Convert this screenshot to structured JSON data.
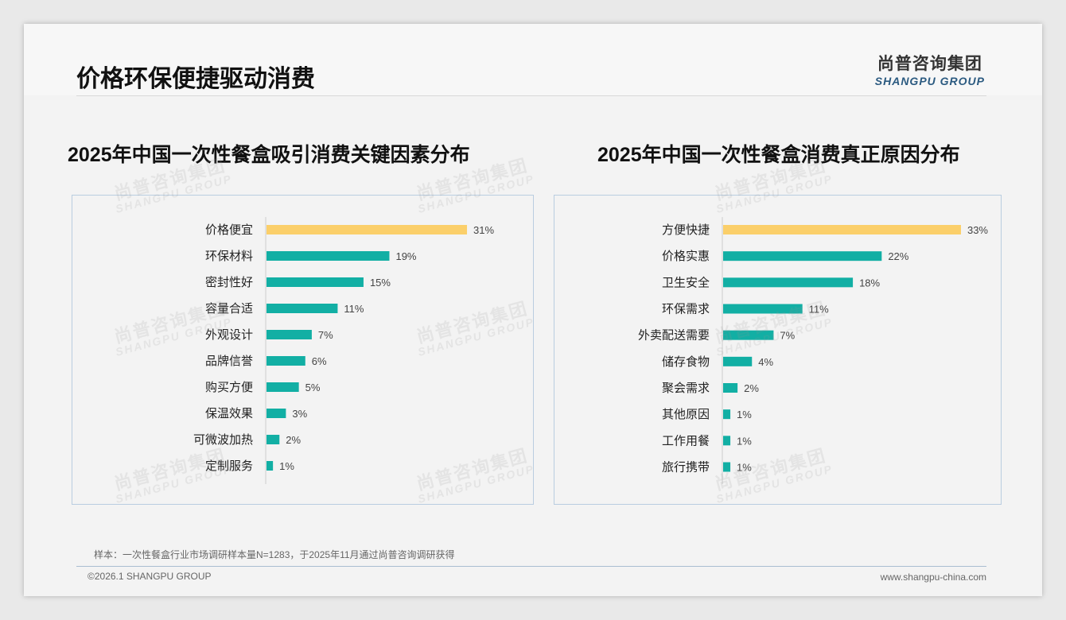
{
  "header": {
    "title": "价格环保便捷驱动消费",
    "logo_cn": "尚普咨询集团",
    "logo_en": "SHANGPU GROUP"
  },
  "colors": {
    "highlight": "#fbcf6a",
    "bar": "#12afa4",
    "axis": "#cccccc"
  },
  "chart_data": [
    {
      "type": "bar",
      "orientation": "horizontal",
      "title": "2025年中国一次性餐盒吸引消费关键因素分布",
      "categories": [
        "价格便宜",
        "环保材料",
        "密封性好",
        "容量合适",
        "外观设计",
        "品牌信誉",
        "购买方便",
        "保温效果",
        "可微波加热",
        "定制服务"
      ],
      "values": [
        31,
        19,
        15,
        11,
        7,
        6,
        5,
        3,
        2,
        1
      ],
      "unit": "%",
      "xlim": [
        0,
        35
      ]
    },
    {
      "type": "bar",
      "orientation": "horizontal",
      "title": "2025年中国一次性餐盒消费真正原因分布",
      "categories": [
        "方便快捷",
        "价格实惠",
        "卫生安全",
        "环保需求",
        "外卖配送需要",
        "储存食物",
        "聚会需求",
        "其他原因",
        "工作用餐",
        "旅行携带"
      ],
      "values": [
        33,
        22,
        18,
        11,
        7,
        4,
        2,
        1,
        1,
        1
      ],
      "unit": "%",
      "xlim": [
        0,
        35
      ]
    }
  ],
  "footer": {
    "note": "样本：一次性餐盒行业市场调研样本量N=1283，于2025年11月通过尚普咨询调研获得",
    "copyright": "©2026.1 SHANGPU GROUP",
    "url": "www.shangpu-china.com"
  }
}
